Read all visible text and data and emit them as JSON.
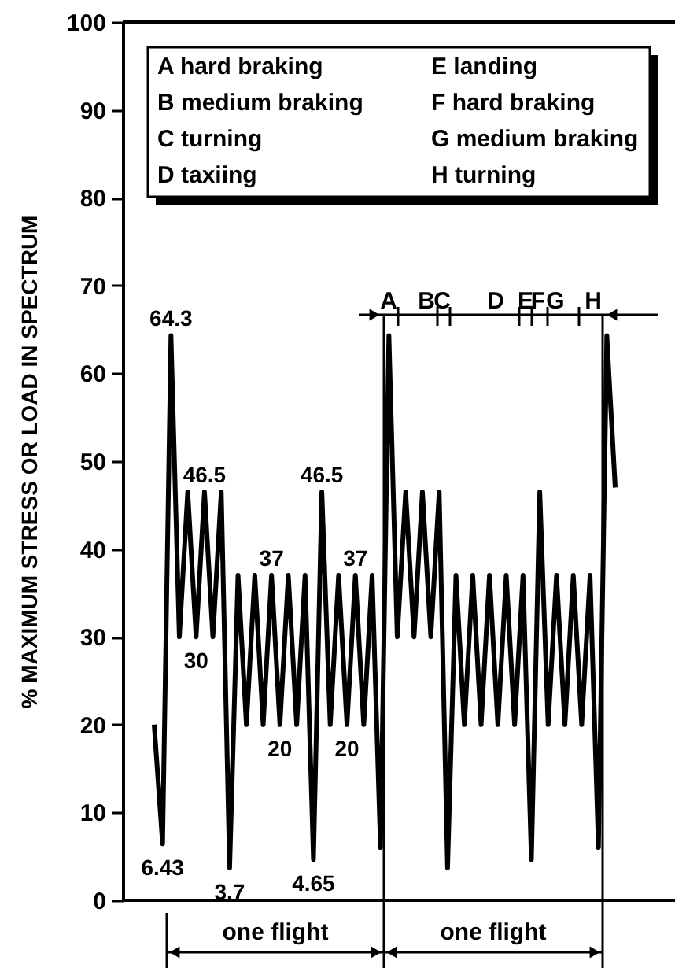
{
  "chart_data": {
    "type": "line",
    "ylabel": "% MAXIMUM STRESS OR LOAD IN SPECTRUM",
    "categories": [
      null,
      null,
      null,
      null,
      null,
      null,
      null,
      null,
      null,
      null,
      null,
      null,
      null,
      null,
      null,
      null,
      null,
      null,
      null,
      null,
      null,
      null,
      null,
      null,
      null,
      null,
      null,
      null,
      null,
      null,
      null,
      null,
      null,
      null,
      null,
      null,
      null,
      null,
      null,
      null,
      null,
      null,
      null,
      null,
      null,
      null,
      null,
      null,
      null,
      null,
      null,
      null,
      null,
      null,
      null,
      null
    ],
    "ylim": [
      0,
      100
    ],
    "yticks": [
      0,
      10,
      20,
      30,
      40,
      50,
      60,
      70,
      80,
      90,
      100
    ],
    "tick_labels": "y",
    "grid": false,
    "series": [
      {
        "color": "#000000",
        "values": [
          20,
          6.43,
          64.3,
          30,
          46.5,
          30,
          46.5,
          30,
          46.5,
          3.7,
          37,
          20,
          37,
          20,
          37,
          20,
          37,
          20,
          37,
          4.65,
          46.5,
          20,
          37,
          20,
          37,
          20,
          37,
          6,
          64.3,
          30,
          46.5,
          30,
          46.5,
          30,
          46.5,
          3.7,
          37,
          20,
          37,
          20,
          37,
          20,
          37,
          20,
          37,
          4.65,
          46.5,
          20,
          37,
          20,
          37,
          20,
          37,
          6,
          64.3,
          47
        ],
        "value_labels": [
          null,
          "6.43",
          "64.3",
          null,
          null,
          "30",
          "46.5",
          null,
          null,
          "3.7",
          null,
          null,
          null,
          null,
          "37",
          "20",
          null,
          null,
          null,
          "4.65",
          "46.5",
          null,
          null,
          "20",
          "37",
          null,
          null,
          null,
          null,
          null,
          null,
          null,
          null,
          null,
          null,
          null,
          null,
          null,
          null,
          null,
          null,
          null,
          null,
          null,
          null,
          null,
          null,
          null,
          null,
          null,
          null,
          null,
          null,
          null,
          null,
          null
        ]
      }
    ],
    "annotations": [
      "A hard braking",
      "B medium braking",
      "C turning",
      "D taxiing",
      "E landing",
      "F hard braking",
      "G medium braking",
      "H turning",
      "A",
      "B",
      "C",
      "D",
      "E",
      "F",
      "G",
      "H",
      "one flight",
      "one flight"
    ]
  }
}
